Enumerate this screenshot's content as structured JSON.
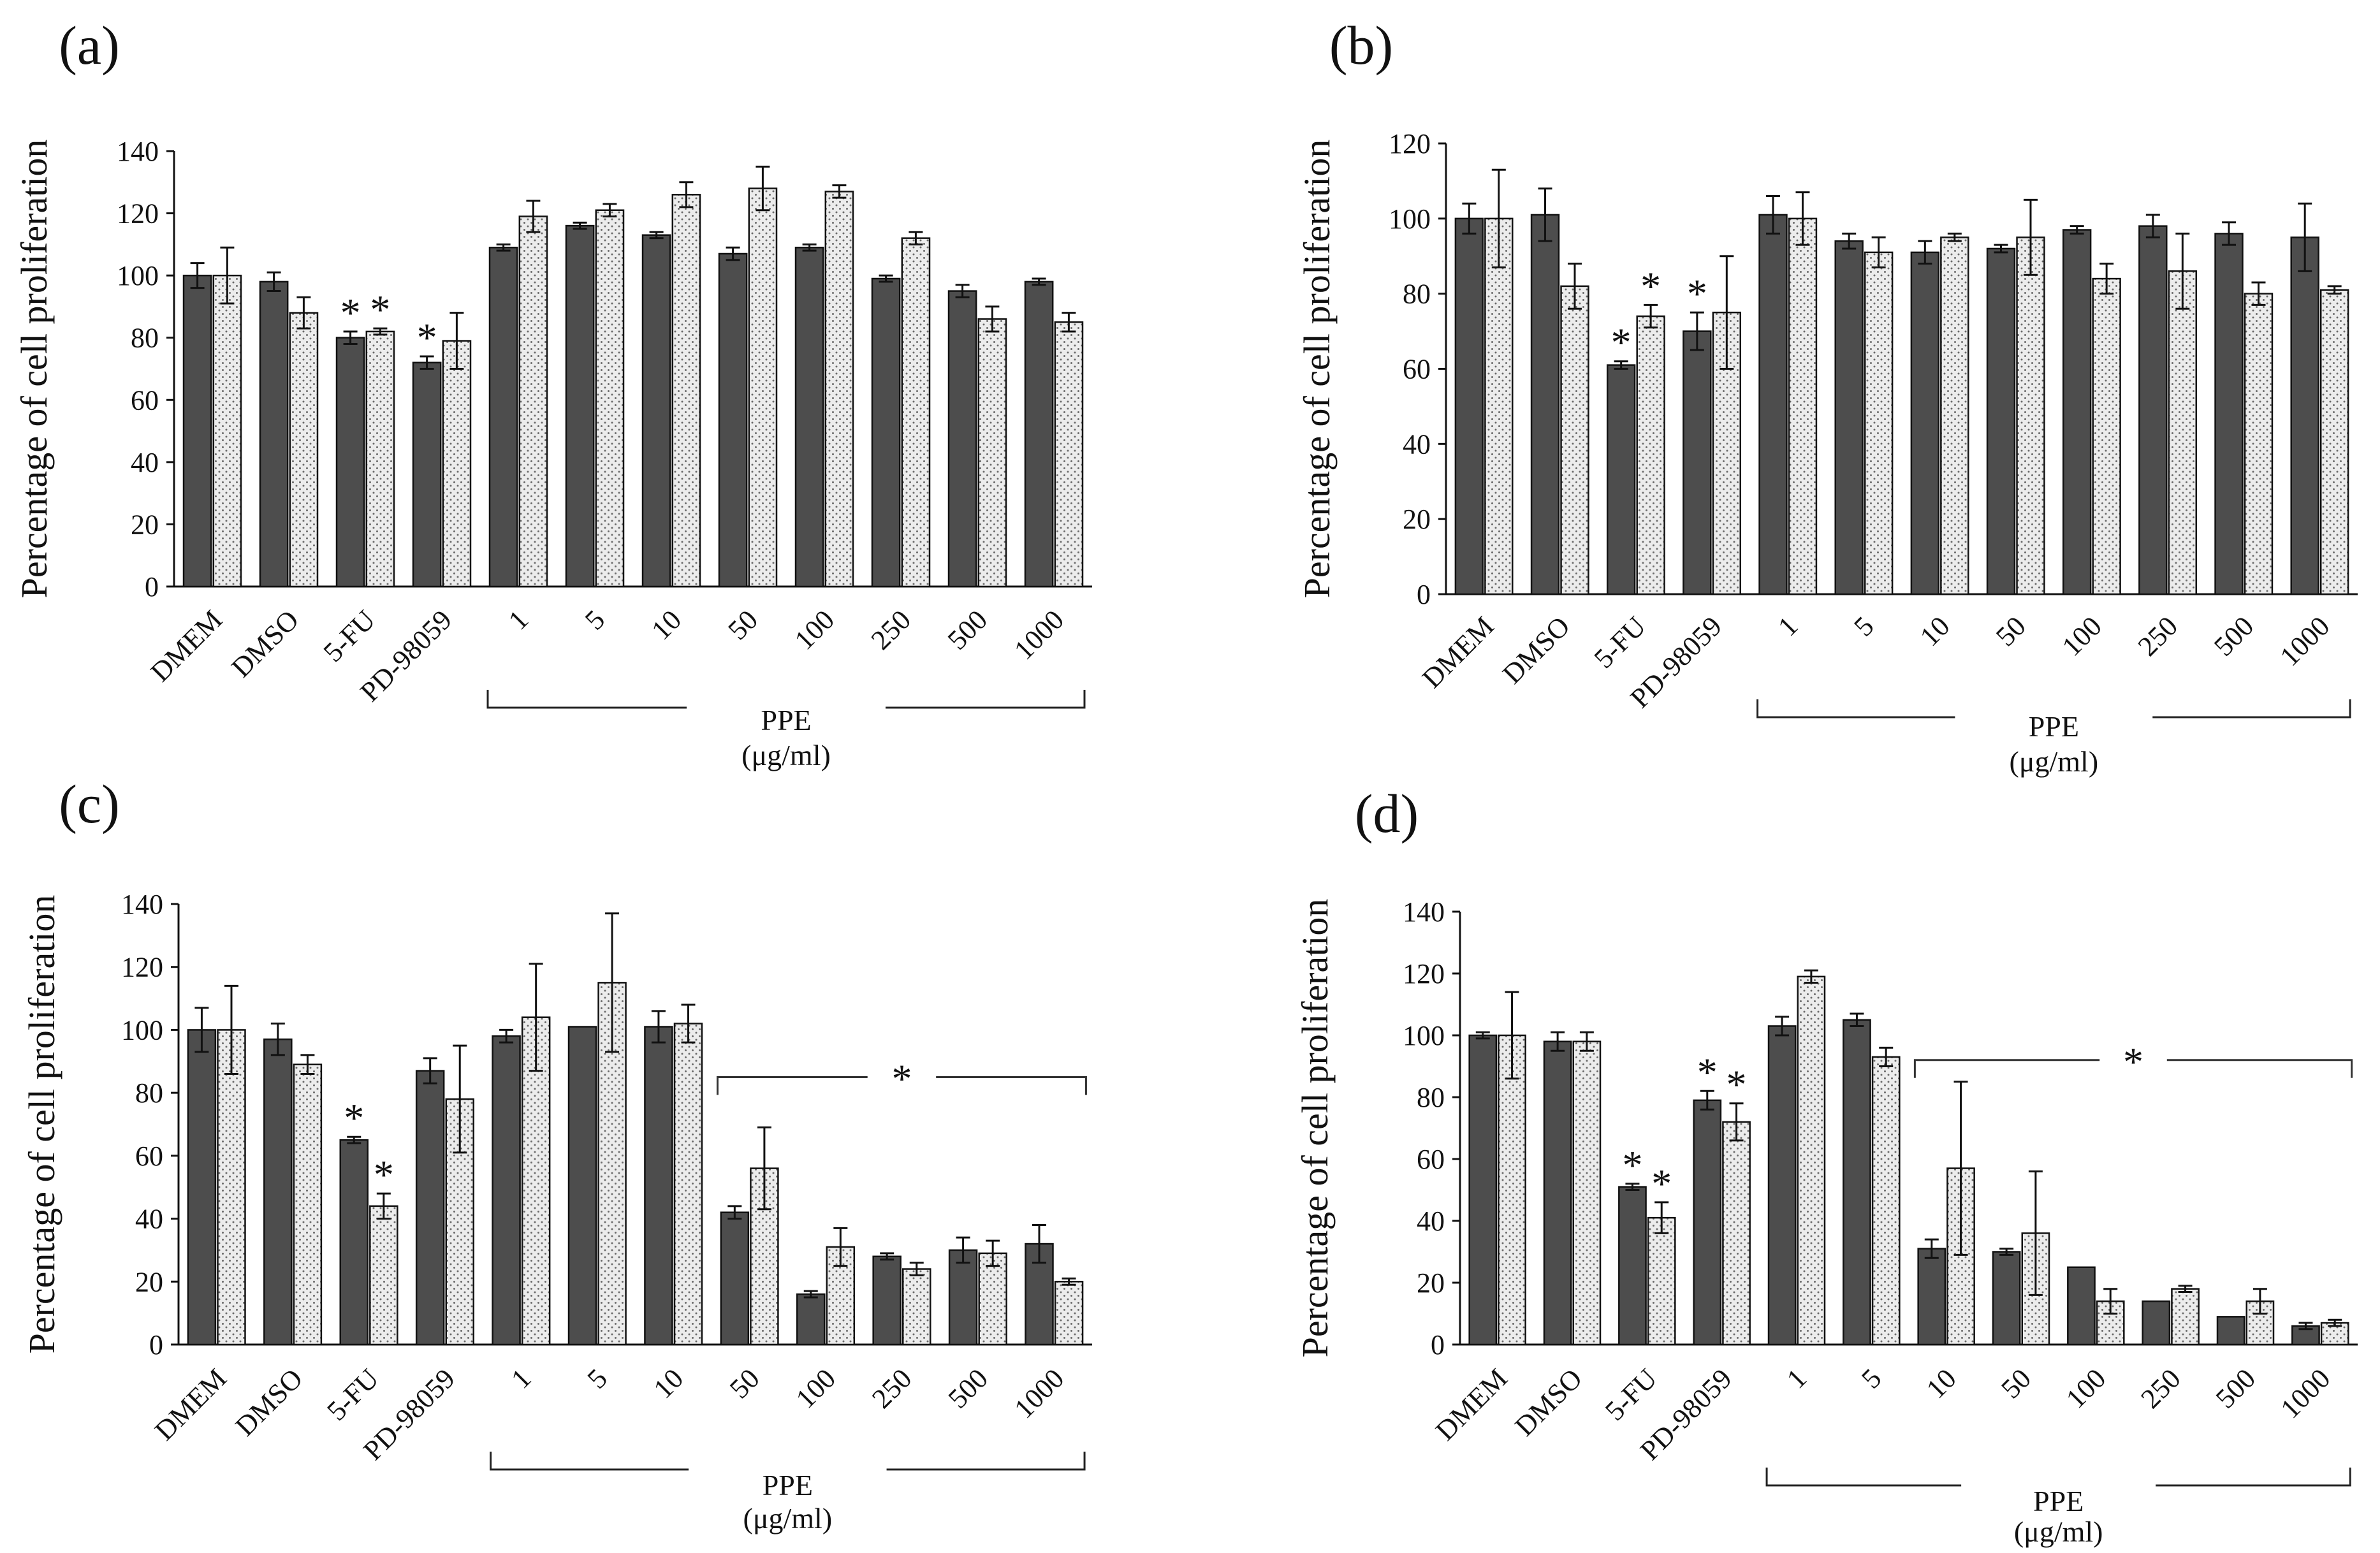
{
  "chart_data": [
    {
      "type": "bar",
      "panel": "(a)",
      "ylabel": "Percentage of cell proliferation",
      "ylim": [
        0,
        140
      ],
      "yticks": [
        0,
        20,
        40,
        60,
        80,
        100,
        120,
        140
      ],
      "categories": [
        "DMEM",
        "DMSO",
        "5-FU",
        "PD-98059",
        "1",
        "5",
        "10",
        "50",
        "100",
        "250",
        "500",
        "1000"
      ],
      "series": [
        {
          "name": "dark",
          "values": [
            100,
            98,
            80,
            72,
            109,
            116,
            113,
            107,
            109,
            99,
            95,
            98
          ],
          "errors": [
            4,
            3,
            2,
            2,
            1,
            1,
            1,
            2,
            1,
            1,
            2,
            1
          ]
        },
        {
          "name": "dotted",
          "values": [
            100,
            88,
            82,
            79,
            119,
            121,
            126,
            128,
            127,
            112,
            86,
            85
          ],
          "errors": [
            9,
            5,
            1,
            9,
            5,
            2,
            4,
            7,
            2,
            2,
            4,
            3
          ]
        }
      ],
      "stars": [
        {
          "index": 2,
          "series": 0
        },
        {
          "index": 2,
          "series": 1
        },
        {
          "index": 3,
          "series": 0
        }
      ],
      "group_bracket": {
        "label": "PPE",
        "sublabel": "(μg/ml)",
        "from": 4,
        "to": 11
      },
      "significance_bracket": null
    },
    {
      "type": "bar",
      "panel": "(b)",
      "ylabel": "Percentage of cell proliferation",
      "ylim": [
        0,
        120
      ],
      "yticks": [
        0,
        20,
        40,
        60,
        80,
        100,
        120
      ],
      "categories": [
        "DMEM",
        "DMSO",
        "5-FU",
        "PD-98059",
        "1",
        "5",
        "10",
        "50",
        "100",
        "250",
        "500",
        "1000"
      ],
      "series": [
        {
          "name": "dark",
          "values": [
            100,
            101,
            61,
            70,
            101,
            94,
            91,
            92,
            97,
            98,
            96,
            95
          ],
          "errors": [
            4,
            7,
            1,
            5,
            5,
            2,
            3,
            1,
            1,
            3,
            3,
            9
          ]
        },
        {
          "name": "dotted",
          "values": [
            100,
            82,
            74,
            75,
            100,
            91,
            95,
            95,
            84,
            86,
            80,
            81
          ],
          "errors": [
            13,
            6,
            3,
            15,
            7,
            4,
            1,
            10,
            4,
            10,
            3,
            1
          ]
        }
      ],
      "stars": [
        {
          "index": 2,
          "series": 0
        },
        {
          "index": 2,
          "series": 1
        },
        {
          "index": 3,
          "series": 0
        }
      ],
      "group_bracket": {
        "label": "PPE",
        "sublabel": "(μg/ml)",
        "from": 4,
        "to": 11
      },
      "significance_bracket": null
    },
    {
      "type": "bar",
      "panel": "(c)",
      "ylabel": "Percentage of cell proliferation",
      "ylim": [
        0,
        140
      ],
      "yticks": [
        0,
        20,
        40,
        60,
        80,
        100,
        120,
        140
      ],
      "categories": [
        "DMEM",
        "DMSO",
        "5-FU",
        "PD-98059",
        "1",
        "5",
        "10",
        "50",
        "100",
        "250",
        "500",
        "1000"
      ],
      "series": [
        {
          "name": "dark",
          "values": [
            100,
            97,
            65,
            87,
            98,
            101,
            101,
            42,
            16,
            28,
            30,
            32
          ],
          "errors": [
            7,
            5,
            1,
            4,
            2,
            0,
            5,
            2,
            1,
            1,
            4,
            6
          ]
        },
        {
          "name": "dotted",
          "values": [
            100,
            89,
            44,
            78,
            104,
            115,
            102,
            56,
            31,
            24,
            29,
            20
          ],
          "errors": [
            14,
            3,
            4,
            17,
            17,
            22,
            6,
            13,
            6,
            2,
            4,
            1
          ]
        }
      ],
      "stars": [
        {
          "index": 2,
          "series": 0
        },
        {
          "index": 2,
          "series": 1
        }
      ],
      "group_bracket": {
        "label": "PPE",
        "sublabel": "(μg/ml)",
        "from": 4,
        "to": 11
      },
      "significance_bracket": {
        "label": "*",
        "from": 7,
        "to": 11,
        "y": 85
      }
    },
    {
      "type": "bar",
      "panel": "(d)",
      "ylabel": "Percentage of cell proliferation",
      "ylim": [
        0,
        140
      ],
      "yticks": [
        0,
        20,
        40,
        60,
        80,
        100,
        120,
        140
      ],
      "categories": [
        "DMEM",
        "DMSO",
        "5-FU",
        "PD-98059",
        "1",
        "5",
        "10",
        "50",
        "100",
        "250",
        "500",
        "1000"
      ],
      "series": [
        {
          "name": "dark",
          "values": [
            100,
            98,
            51,
            79,
            103,
            105,
            31,
            30,
            25,
            14,
            9,
            6
          ],
          "errors": [
            1,
            3,
            1,
            3,
            3,
            2,
            3,
            1,
            0,
            0,
            0,
            1
          ]
        },
        {
          "name": "dotted",
          "values": [
            100,
            98,
            41,
            72,
            119,
            93,
            57,
            36,
            14,
            18,
            14,
            7
          ],
          "errors": [
            14,
            3,
            5,
            6,
            2,
            3,
            28,
            20,
            4,
            1,
            4,
            1
          ]
        }
      ],
      "stars": [
        {
          "index": 2,
          "series": 0
        },
        {
          "index": 2,
          "series": 1
        },
        {
          "index": 3,
          "series": 0
        },
        {
          "index": 3,
          "series": 1
        }
      ],
      "group_bracket": {
        "label": "PPE",
        "sublabel": "(μg/ml)",
        "from": 4,
        "to": 11
      },
      "significance_bracket": {
        "label": "*",
        "from": 6,
        "to": 11,
        "y": 92
      }
    }
  ],
  "colors": {
    "dark_bar": "#4d4d4d",
    "dotted_bar": "#ececec",
    "axis": "#111111",
    "star": "#333333"
  }
}
